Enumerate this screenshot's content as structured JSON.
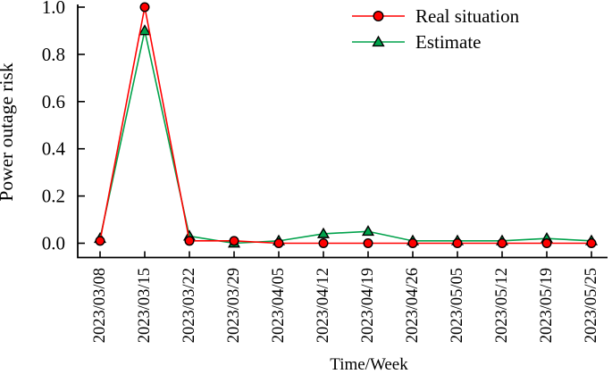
{
  "chart_data": {
    "type": "line",
    "title": "",
    "xlabel": "Time/Week",
    "ylabel": "Power outage risk",
    "categories": [
      "2023/03/08",
      "2023/03/15",
      "2023/03/22",
      "2023/03/29",
      "2023/04/05",
      "2023/04/12",
      "2023/04/19",
      "2023/04/26",
      "2023/05/05",
      "2023/05/12",
      "2023/05/19",
      "2023/05/25"
    ],
    "series": [
      {
        "name": "Real situation",
        "color": "#ff0000",
        "marker": "circle",
        "marker_edge": "#000000",
        "values": [
          0.01,
          1.0,
          0.01,
          0.01,
          0.0,
          0.0,
          0.0,
          0.0,
          0.0,
          0.0,
          0.0,
          0.0
        ]
      },
      {
        "name": "Estimate",
        "color": "#00a24b",
        "marker": "triangle",
        "marker_edge": "#000000",
        "values": [
          0.02,
          0.9,
          0.03,
          0.0,
          0.01,
          0.04,
          0.05,
          0.01,
          0.01,
          0.01,
          0.02,
          0.01
        ]
      }
    ],
    "yticks": [
      0.0,
      0.2,
      0.4,
      0.6,
      0.8,
      1.0
    ],
    "ylim": [
      -0.06,
      1.0
    ],
    "grid": false,
    "legend_position": "top-right",
    "axis_color": "#000000"
  }
}
